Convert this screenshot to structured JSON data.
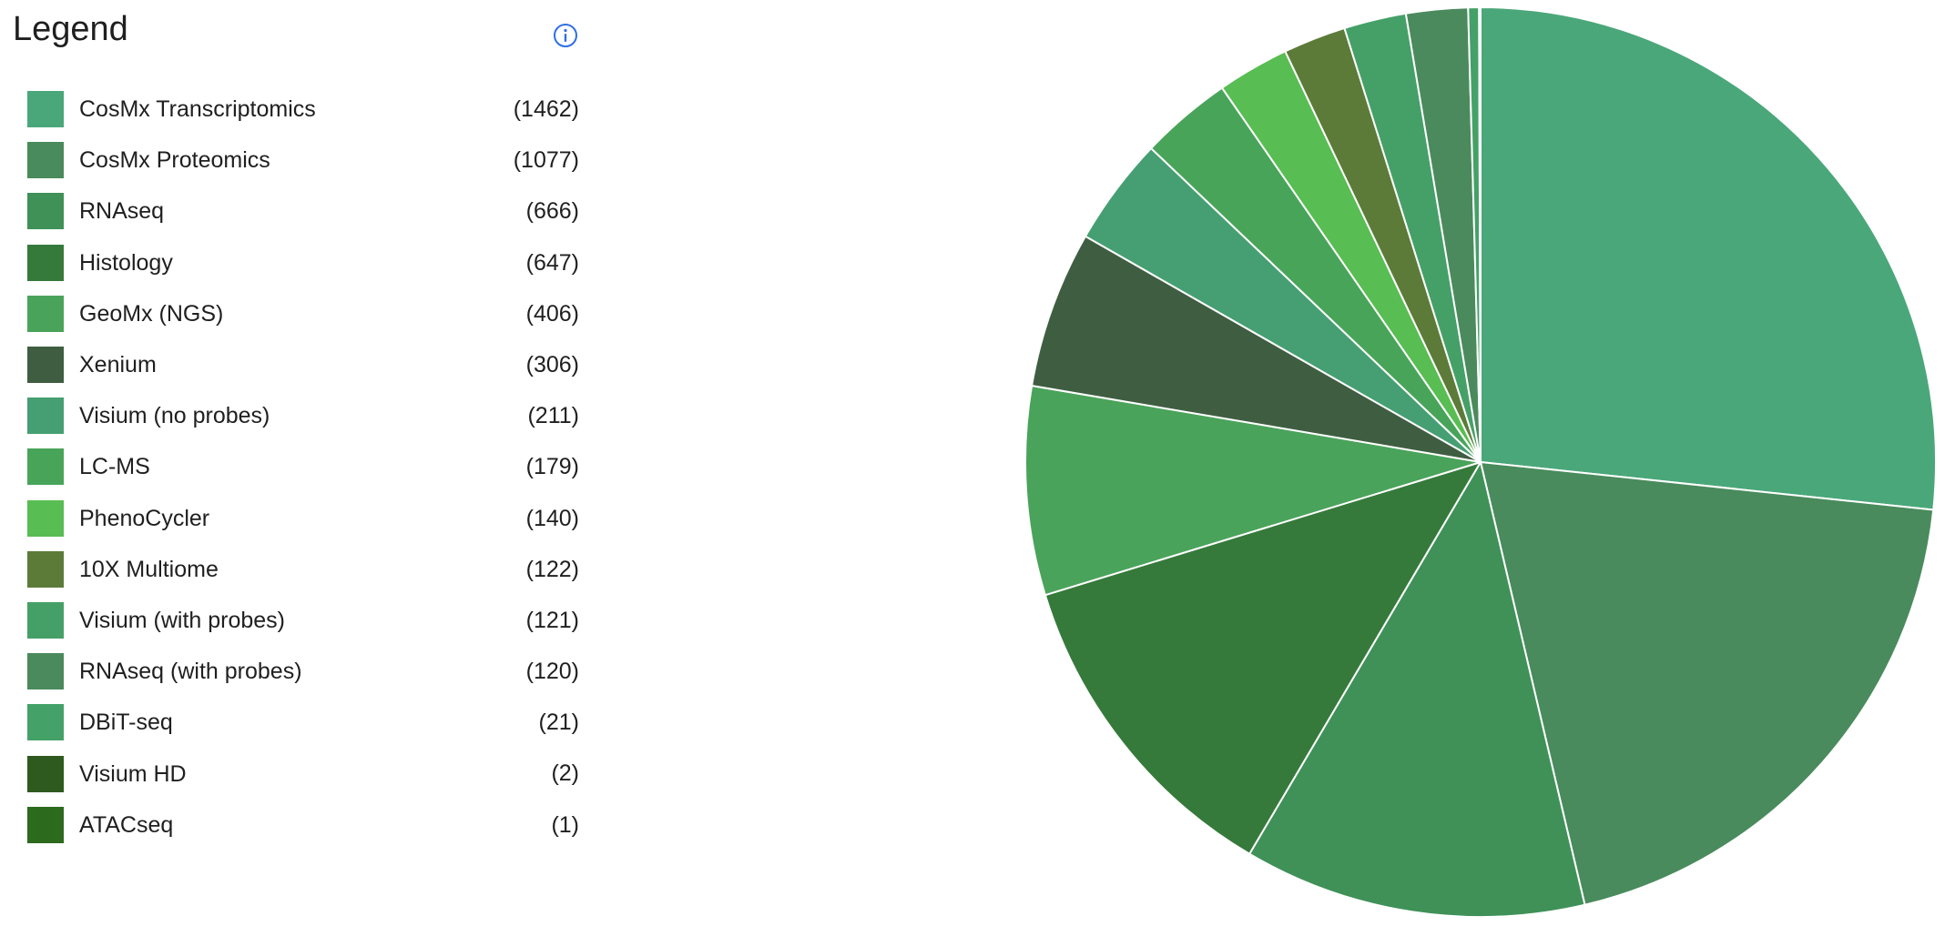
{
  "legend": {
    "title": "Legend",
    "info_icon": "info-circle-icon"
  },
  "chart_data": {
    "type": "pie",
    "title": "",
    "legend_position": "left",
    "slices": [
      {
        "label": "CosMx Transcriptomics",
        "count_text": "(1462)",
        "value": 1462,
        "color": "#4aa779"
      },
      {
        "label": "CosMx Proteomics",
        "count_text": "(1077)",
        "value": 1077,
        "color": "#498b5c"
      },
      {
        "label": "RNAseq",
        "count_text": "(666)",
        "value": 666,
        "color": "#3f9158"
      },
      {
        "label": "Histology",
        "count_text": "(647)",
        "value": 647,
        "color": "#367a3b"
      },
      {
        "label": "GeoMx (NGS)",
        "count_text": "(406)",
        "value": 406,
        "color": "#4aa35a"
      },
      {
        "label": "Xenium",
        "count_text": "(306)",
        "value": 306,
        "color": "#3f5e41"
      },
      {
        "label": "Visium (no probes)",
        "count_text": "(211)",
        "value": 211,
        "color": "#469f72"
      },
      {
        "label": "LC-MS",
        "count_text": "(179)",
        "value": 179,
        "color": "#48a459"
      },
      {
        "label": "PhenoCycler",
        "count_text": "(140)",
        "value": 140,
        "color": "#58bd52"
      },
      {
        "label": "10X Multiome",
        "count_text": "(122)",
        "value": 122,
        "color": "#5c7b38"
      },
      {
        "label": "Visium (with probes)",
        "count_text": "(121)",
        "value": 121,
        "color": "#45a067"
      },
      {
        "label": "RNAseq (with probes)",
        "count_text": "(120)",
        "value": 120,
        "color": "#4b8a5d"
      },
      {
        "label": "DBiT-seq",
        "count_text": "(21)",
        "value": 21,
        "color": "#44a168"
      },
      {
        "label": "Visium HD",
        "count_text": "(2)",
        "value": 2,
        "color": "#2e5a1f"
      },
      {
        "label": "ATACseq",
        "count_text": "(1)",
        "value": 1,
        "color": "#2c6a1e"
      }
    ]
  }
}
